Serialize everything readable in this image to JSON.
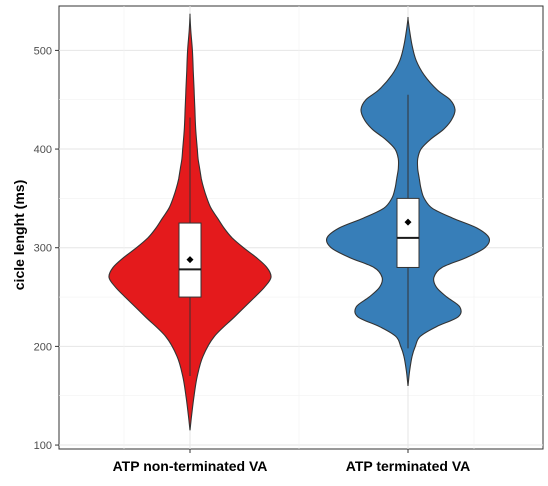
{
  "chart_data": {
    "type": "violin",
    "title": "",
    "xlabel": "",
    "ylabel": "cicle lenght (ms)",
    "ylim": [
      96,
      545
    ],
    "yticks": [
      100,
      200,
      300,
      400,
      500
    ],
    "grid": true,
    "legend": "none",
    "categories": [
      "ATP non-terminated VA",
      "ATP terminated VA"
    ],
    "colors": [
      "#e41a1c",
      "#377eb8"
    ],
    "series": [
      {
        "category": "ATP non-terminated VA",
        "color": "#e41a1c",
        "density_y": [
          115,
          130,
          150,
          170,
          190,
          210,
          230,
          250,
          260,
          270,
          280,
          290,
          300,
          310,
          320,
          330,
          340,
          350,
          360,
          370,
          380,
          390,
          400,
          420,
          440,
          460,
          480,
          500,
          520,
          535
        ],
        "density_width": [
          0.0,
          0.02,
          0.05,
          0.09,
          0.16,
          0.3,
          0.55,
          0.8,
          0.92,
          1.0,
          0.95,
          0.82,
          0.66,
          0.52,
          0.42,
          0.34,
          0.26,
          0.21,
          0.17,
          0.14,
          0.12,
          0.1,
          0.09,
          0.07,
          0.06,
          0.05,
          0.04,
          0.03,
          0.01,
          0.0
        ],
        "box": {
          "whisker_low": 170,
          "q1": 250,
          "median": 278,
          "q3": 325,
          "whisker_high": 432,
          "mean": 288
        }
      },
      {
        "category": "ATP terminated VA",
        "color": "#377eb8",
        "density_y": [
          160,
          175,
          190,
          200,
          210,
          220,
          230,
          240,
          250,
          260,
          270,
          280,
          290,
          300,
          310,
          320,
          330,
          340,
          350,
          360,
          370,
          380,
          390,
          400,
          410,
          420,
          430,
          440,
          450,
          460,
          475,
          490,
          505,
          520,
          532
        ],
        "density_width": [
          0.0,
          0.02,
          0.05,
          0.09,
          0.15,
          0.35,
          0.62,
          0.64,
          0.48,
          0.35,
          0.32,
          0.42,
          0.72,
          0.95,
          1.0,
          0.85,
          0.55,
          0.3,
          0.2,
          0.16,
          0.14,
          0.12,
          0.12,
          0.16,
          0.28,
          0.44,
          0.54,
          0.58,
          0.52,
          0.36,
          0.2,
          0.1,
          0.05,
          0.02,
          0.0
        ],
        "box": {
          "whisker_low": 198,
          "q1": 280,
          "median": 310,
          "q3": 350,
          "whisker_high": 455,
          "mean": 326
        }
      }
    ]
  }
}
